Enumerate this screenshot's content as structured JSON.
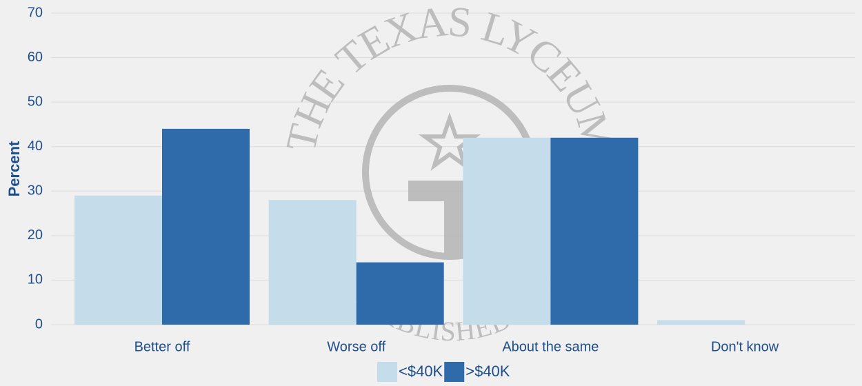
{
  "chart_data": {
    "type": "bar",
    "categories": [
      "Better off",
      "Worse off",
      "About the same",
      "Don't know"
    ],
    "series": [
      {
        "name": "<$40K",
        "color": "#c5dcea",
        "values": [
          29,
          28,
          42,
          1
        ]
      },
      {
        "name": ">$40K",
        "color": "#2f6aab",
        "values": [
          44,
          14,
          42,
          0
        ]
      }
    ],
    "ylabel": "Percent",
    "ylim": [
      0,
      70
    ],
    "yticks": [
      0,
      10,
      20,
      30,
      40,
      50,
      60,
      70
    ],
    "grid": true,
    "legend": "bottom",
    "watermark": {
      "top": "THE TEXAS LYCEUM",
      "bottom": "ESTABLISHED 1980"
    }
  }
}
